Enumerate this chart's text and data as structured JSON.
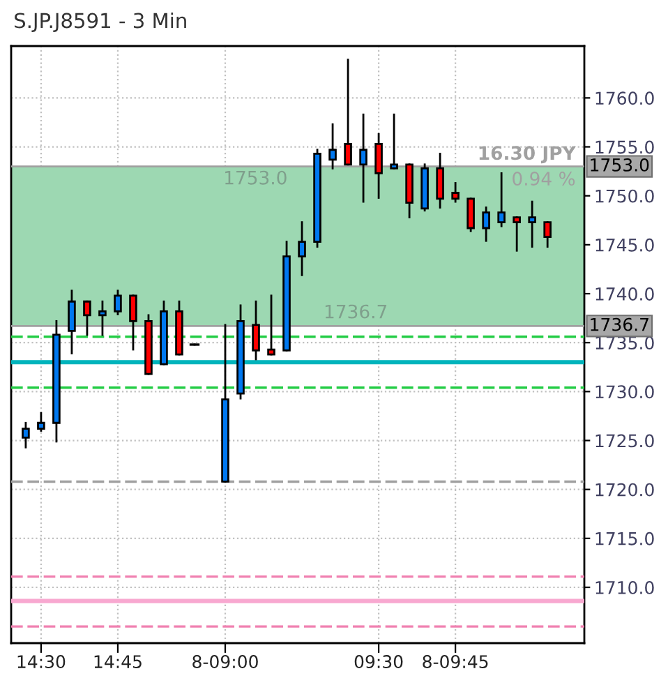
{
  "chart_data": {
    "type": "candlestick",
    "title": "S.JP.J8591 - 3 Min",
    "categories": [
      null,
      "14:30",
      null,
      null,
      null,
      null,
      "14:45",
      null,
      null,
      null,
      null,
      null,
      null,
      "8-09:00",
      null,
      null,
      null,
      null,
      null,
      null,
      null,
      null,
      null,
      "09:30",
      null,
      null,
      null,
      null,
      "8-09:45",
      null,
      null,
      null,
      null,
      null,
      null,
      null,
      null
    ],
    "ohlc": [
      [
        1725.3,
        1726.8,
        1724.3,
        1726.2
      ],
      [
        1726.2,
        1727.8,
        1726.0,
        1726.8
      ],
      [
        1726.8,
        1737.2,
        1724.9,
        1735.8
      ],
      [
        1736.2,
        1740.3,
        1733.9,
        1739.2
      ],
      [
        1739.2,
        1739.2,
        1735.8,
        1737.8
      ],
      [
        1737.8,
        1739.2,
        1735.8,
        1738.2
      ],
      [
        1738.2,
        1740.3,
        1737.9,
        1739.8
      ],
      [
        1739.8,
        1739.8,
        1734.3,
        1737.2
      ],
      [
        1737.2,
        1737.8,
        1731.8,
        1731.8
      ],
      [
        1732.8,
        1739.2,
        1732.8,
        1738.2
      ],
      [
        1738.2,
        1739.2,
        1733.8,
        1733.8
      ],
      [
        1734.8,
        1734.8,
        1734.8,
        1734.8
      ],
      null,
      [
        1720.8,
        1736.8,
        1720.8,
        1729.2
      ],
      [
        1729.8,
        1738.8,
        1729.3,
        1737.2
      ],
      [
        1736.8,
        1739.2,
        1733.3,
        1734.2
      ],
      [
        1734.3,
        1739.8,
        1733.8,
        1733.8
      ],
      [
        1734.2,
        1745.3,
        1734.2,
        1743.8
      ],
      [
        1743.8,
        1747.3,
        1741.9,
        1745.3
      ],
      [
        1745.3,
        1754.7,
        1744.8,
        1754.3
      ],
      [
        1753.7,
        1757.3,
        1752.8,
        1754.7
      ],
      [
        1755.3,
        1763.9,
        1753.2,
        1753.2
      ],
      [
        1753.2,
        1758.3,
        1749.4,
        1754.7
      ],
      [
        1755.3,
        1756.3,
        1749.8,
        1752.3
      ],
      [
        1752.8,
        1758.3,
        1752.8,
        1753.2
      ],
      [
        1753.2,
        1753.2,
        1747.8,
        1749.3
      ],
      [
        1748.7,
        1753.2,
        1748.5,
        1752.8
      ],
      [
        1752.8,
        1754.3,
        1748.8,
        1749.7
      ],
      [
        1750.3,
        1751.3,
        1749.4,
        1749.7
      ],
      [
        1749.7,
        1749.7,
        1746.4,
        1746.7
      ],
      [
        1746.7,
        1748.8,
        1745.4,
        1748.3
      ],
      [
        1747.3,
        1752.3,
        1746.9,
        1748.3
      ],
      [
        1747.8,
        1747.8,
        1744.4,
        1747.3
      ],
      [
        1747.3,
        1749.4,
        1744.8,
        1747.8
      ],
      [
        1747.3,
        1747.3,
        1744.8,
        1745.8
      ],
      null,
      null
    ],
    "colors": [
      "#0078f0",
      "#0078f0",
      "#0078f0",
      "#0078f0",
      "#ff0000",
      "#0078f0",
      "#0078f0",
      "#ff0000",
      "#ff0000",
      "#0078f0",
      "#ff0000",
      "#000000",
      null,
      "#0078f0",
      "#0078f0",
      "#ff0000",
      "#ff0000",
      "#0078f0",
      "#0078f0",
      "#0078f0",
      "#0078f0",
      "#ff0000",
      "#0078f0",
      "#ff0000",
      "#0078f0",
      "#ff0000",
      "#0078f0",
      "#ff0000",
      "#ff0000",
      "#ff0000",
      "#0078f0",
      "#0078f0",
      "#ff0000",
      "#0078f0",
      "#ff0000",
      null,
      null
    ],
    "ylim": [
      1704.3,
      1765.3
    ],
    "yticks": [
      {
        "value": 1710,
        "label": "1710.0"
      },
      {
        "value": 1715,
        "label": "1715.0"
      },
      {
        "value": 1720,
        "label": "1720.0"
      },
      {
        "value": 1725,
        "label": "1725.0"
      },
      {
        "value": 1730,
        "label": "1730.0"
      },
      {
        "value": 1735,
        "label": "1735.0"
      },
      {
        "value": 1740,
        "label": "1740.0"
      },
      {
        "value": 1745,
        "label": "1745.0"
      },
      {
        "value": 1750,
        "label": "1750.0"
      },
      {
        "value": 1755,
        "label": "1755.0"
      },
      {
        "value": 1760,
        "label": "1760.0"
      }
    ],
    "ref_lines": [
      {
        "axis": "y",
        "value": 1753.0,
        "label": "1753.0",
        "color": "#a0a0a0",
        "line_style": "solid"
      },
      {
        "axis": "y",
        "value": 1736.7,
        "label": "1736.7",
        "color": "#a0a0a0",
        "line_style": "solid"
      },
      {
        "axis": "y",
        "value": 1735.6,
        "color": "#22cc44",
        "line_style": "dashed"
      },
      {
        "axis": "y",
        "value": 1733.0,
        "color": "#00b4bc",
        "line_style": "solid"
      },
      {
        "axis": "y",
        "value": 1730.4,
        "color": "#22cc44",
        "line_style": "dashed"
      },
      {
        "axis": "y",
        "value": 1720.8,
        "color": "#a0a0a0",
        "line_style": "dashed"
      },
      {
        "axis": "y",
        "value": 1711.1,
        "color": "#f080b0",
        "line_style": "dashed"
      },
      {
        "axis": "y",
        "value": 1708.6,
        "color": "#f8a8d0",
        "line_style": "solid"
      },
      {
        "axis": "y",
        "value": 1706.0,
        "color": "#f080b0",
        "line_style": "dashed"
      }
    ],
    "bands": [
      {
        "axis": "y",
        "from": 1736.7,
        "to": 1753.0,
        "label": "16.30 JPY",
        "color": "#9dd8b2"
      }
    ],
    "annotations": [
      {
        "text": "1753.0",
        "y": 1753.0
      },
      {
        "text": "1736.7",
        "y": 1736.7
      },
      "0.94 %"
    ],
    "grid": true
  }
}
